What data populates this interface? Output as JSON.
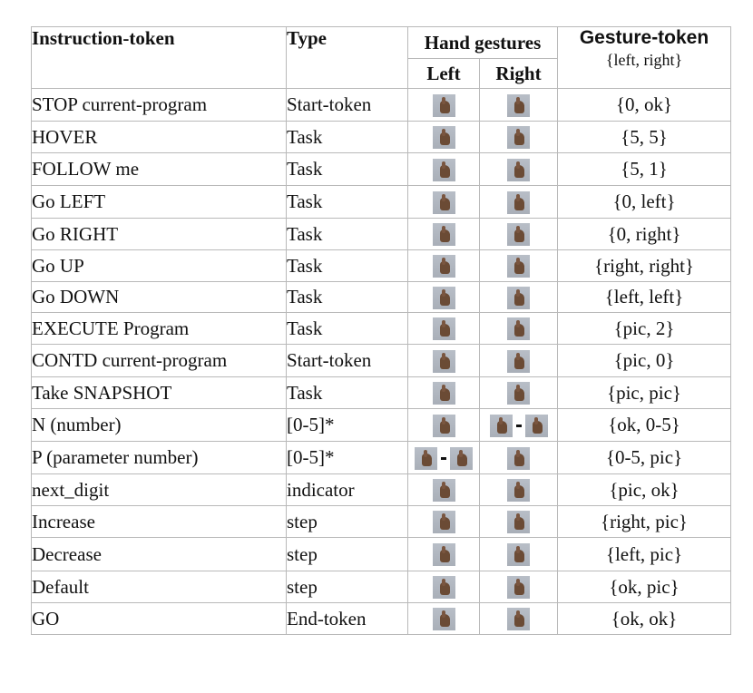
{
  "header": {
    "instruction": "Instruction-token",
    "type": "Type",
    "hand_gestures": "Hand gestures",
    "left": "Left",
    "right": "Right",
    "gesture_token": "Gesture-token",
    "gesture_sub": "{left, right}"
  },
  "rows": [
    {
      "instruction": "STOP current-program",
      "type": "Start-token",
      "code": "{0, ok}",
      "left": "hand-fist-icon",
      "right": "hand-ok-icon"
    },
    {
      "instruction": "HOVER",
      "type": "Task",
      "code": "{5, 5}",
      "left": "hand-open-icon",
      "right": "hand-open-icon"
    },
    {
      "instruction": "FOLLOW me",
      "type": "Task",
      "code": "{5, 1}",
      "left": "hand-open-icon",
      "right": "hand-one-icon"
    },
    {
      "instruction": "Go LEFT",
      "type": "Task",
      "code": "{0, left}",
      "left": "hand-fist-icon",
      "right": "hand-left-icon"
    },
    {
      "instruction": "Go RIGHT",
      "type": "Task",
      "code": "{0, right}",
      "left": "hand-fist-icon",
      "right": "hand-right-icon"
    },
    {
      "instruction": "Go UP",
      "type": "Task",
      "code": "{right, right}",
      "left": "hand-right-icon",
      "right": "hand-right-icon"
    },
    {
      "instruction": "Go DOWN",
      "type": "Task",
      "code": "{left, left}",
      "left": "hand-left-icon",
      "right": "hand-left-icon"
    },
    {
      "instruction": "EXECUTE Program",
      "type": "Task",
      "code": "{pic, 2}",
      "left": "hand-pic-icon",
      "right": "hand-two-icon"
    },
    {
      "instruction": "CONTD current-program",
      "type": "Start-token",
      "code": "{pic, 0}",
      "left": "hand-pic-icon",
      "right": "hand-fist-icon"
    },
    {
      "instruction": "Take SNAPSHOT",
      "type": "Task",
      "code": "{pic, pic}",
      "left": "hand-pic-icon",
      "right": "hand-pic-icon"
    },
    {
      "instruction": "N (number)",
      "type": "[0-5]*",
      "code": "{ok, 0-5}",
      "left": "hand-ok-icon",
      "right": "hand-range-icon"
    },
    {
      "instruction": "P (parameter number)",
      "type": "[0-5]*",
      "code": "{0-5, pic}",
      "left": "hand-range-icon",
      "right": "hand-pic-icon"
    },
    {
      "instruction": "next_digit",
      "type": "indicator",
      "code": "{pic, ok}",
      "left": "hand-pic-icon",
      "right": "hand-ok-icon"
    },
    {
      "instruction": "Increase",
      "type": "step",
      "code": "{right, pic}",
      "left": "hand-right-icon",
      "right": "hand-pic-icon"
    },
    {
      "instruction": "Decrease",
      "type": "step",
      "code": "{left, pic}",
      "left": "hand-left-icon",
      "right": "hand-pic-icon"
    },
    {
      "instruction": "Default",
      "type": "step",
      "code": "{ok, pic}",
      "left": "hand-ok-icon",
      "right": "hand-pic-icon"
    },
    {
      "instruction": "GO",
      "type": "End-token",
      "code": "{ok, ok}",
      "left": "hand-ok-icon",
      "right": "hand-ok-icon"
    }
  ]
}
